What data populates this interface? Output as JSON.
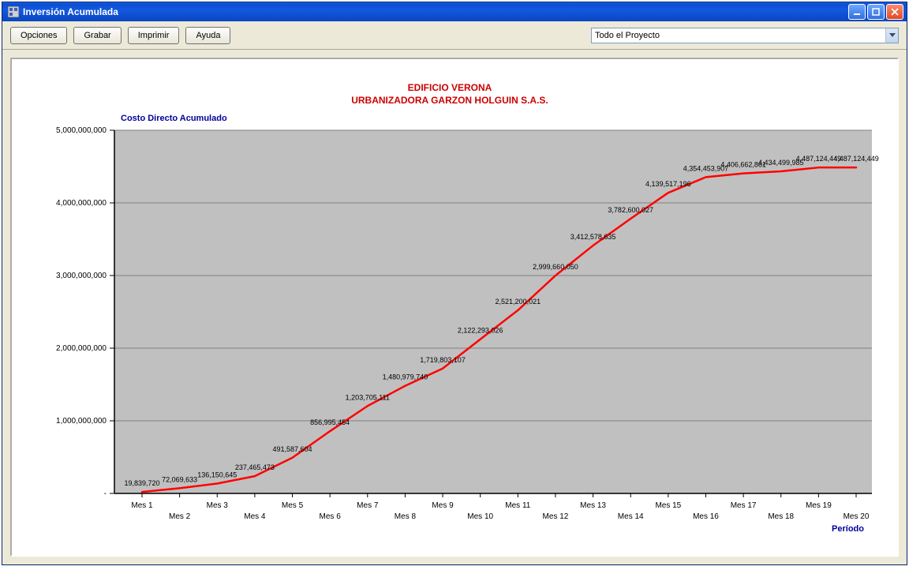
{
  "window": {
    "title": "Inversión Acumulada"
  },
  "toolbar": {
    "opciones": "Opciones",
    "grabar": "Grabar",
    "imprimir": "Imprimir",
    "ayuda": "Ayuda",
    "project_selected": "Todo el Proyecto"
  },
  "chart": {
    "type": "line",
    "title_line1": "EDIFICIO VERONA",
    "title_line2": "URBANIZADORA GARZON HOLGUIN S.A.S.",
    "title_color": "#cc0000",
    "title_fontsize": 12,
    "y_axis_title": "Costo Directo Acumulado",
    "y_axis_title_color": "#000099",
    "x_axis_title": "Período",
    "x_axis_title_color": "#000099",
    "axis_title_fontsize": 11,
    "background_color": "#ffffff",
    "plot_bg_color": "#c0c0c0",
    "gridline_color": "#808080",
    "axis_color": "#000000",
    "label_color": "#000000",
    "label_fontsize": 10,
    "data_label_fontsize": 9,
    "line_color": "#ff0000",
    "line_width": 2.5,
    "ylim": [
      0,
      5000000000
    ],
    "ytick_step": 1000000000,
    "yticks": [
      {
        "v": 0,
        "label": "-"
      },
      {
        "v": 1000000000,
        "label": "1,000,000,000"
      },
      {
        "v": 2000000000,
        "label": "2,000,000,000"
      },
      {
        "v": 3000000000,
        "label": "3,000,000,000"
      },
      {
        "v": 4000000000,
        "label": "4,000,000,000"
      },
      {
        "v": 5000000000,
        "label": "5,000,000,000"
      }
    ],
    "categories": [
      "Mes 1",
      "Mes 2",
      "Mes 3",
      "Mes 4",
      "Mes 5",
      "Mes 6",
      "Mes 7",
      "Mes 8",
      "Mes 9",
      "Mes 10",
      "Mes 11",
      "Mes 12",
      "Mes 13",
      "Mes 14",
      "Mes 15",
      "Mes 16",
      "Mes 17",
      "Mes 18",
      "Mes 19",
      "Mes 20"
    ],
    "values": [
      19839720,
      72069633,
      136150645,
      237465473,
      491587604,
      856995454,
      1203705111,
      1480979740,
      1719803107,
      2122293026,
      2521200021,
      2999660050,
      3412578635,
      3782600027,
      4139517196,
      4354453907,
      4406662861,
      4434499985,
      4487124449,
      4487124449
    ],
    "data_labels": [
      "19,839,720",
      "72,069,633",
      "136,150,645",
      "237,465,473",
      "491,587,604",
      "856,995,454",
      "1,203,705,111",
      "1,480,979,740",
      "1,719,803,107",
      "2,122,293,026",
      "2,521,200,021",
      "2,999,660,050",
      "3,412,578,635",
      "3,782,600,027",
      "4,139,517,196",
      "4,354,453,907",
      "4,406,662,861",
      "4,434,499,985",
      "4,487,124,449",
      "4,487,124,449"
    ]
  }
}
